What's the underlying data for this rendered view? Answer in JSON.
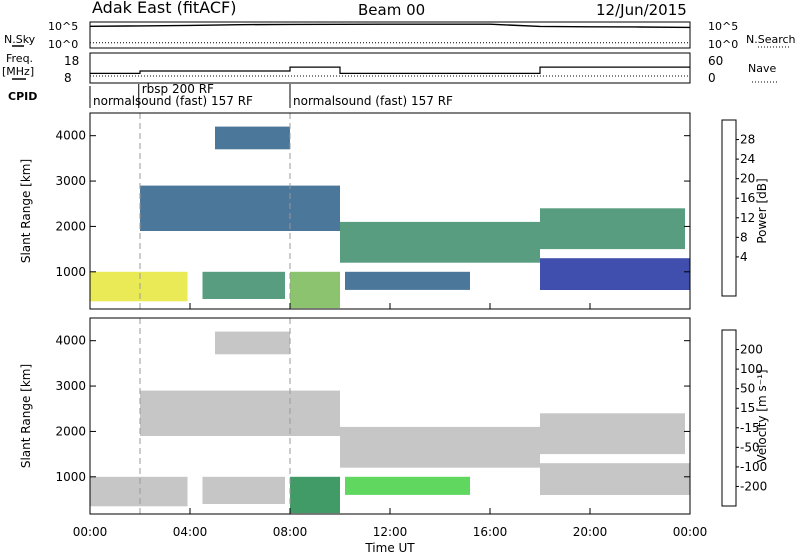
{
  "header": {
    "station": "Adak East (fitACF)",
    "beam": "Beam 00",
    "date": "12/Jun/2015"
  },
  "strip_labels": {
    "nsky": "N.Sky",
    "nsearch": "N.Search",
    "freq": "Freq.",
    "freq_unit": "[MHz]",
    "nave": "Nave",
    "cpid": "CPID"
  },
  "cpid_segments": [
    {
      "label": "normalsound (fast) 157 RF",
      "start": 0.0,
      "end": 1.95
    },
    {
      "label": "rbsp 200 RF",
      "start": 1.95,
      "end": 8.0
    },
    {
      "label": "normalsound (fast) 157 RF",
      "start": 8.0,
      "end": 24.0
    }
  ],
  "colorbars": {
    "power": {
      "label": "Power [dB]",
      "ticks": [
        "28",
        "24",
        "20",
        "16",
        "12",
        "8",
        "4"
      ],
      "colors": [
        "#0000e0",
        "#1e2fa0",
        "#2a5f88",
        "#3b8c6a",
        "#77b955",
        "#e6e63a",
        "#ff9e1a",
        "#ff5a10",
        "#e00000"
      ]
    },
    "velocity": {
      "label": "Velocity [m s⁻¹]",
      "ticks": [
        "200",
        "100",
        "50",
        "15",
        "-15",
        "-50",
        "-100",
        "-200"
      ],
      "colors": [
        "#ee1111",
        "#ff5a00",
        "#ff9a00",
        "#ffd000",
        "#bcbcbc",
        "#44d144",
        "#1f8a4c",
        "#1f3ba0",
        "#1a1a90"
      ]
    }
  },
  "chart_data": [
    {
      "type": "line",
      "title": "",
      "series": [
        {
          "name": "N.Sky",
          "x": [
            0,
            2,
            4,
            6,
            8,
            10,
            12,
            14,
            16,
            18,
            20,
            22,
            24
          ],
          "values": [
            15000,
            18000,
            22000,
            30000,
            35000,
            36000,
            37000,
            38000,
            37000,
            14000,
            12000,
            11000,
            9000
          ]
        },
        {
          "name": "N.Search",
          "x": [
            0,
            24
          ],
          "values": [
            10,
            10
          ]
        }
      ],
      "yticks_left": [
        "10^5",
        "10^0"
      ],
      "yticks_right": [
        "10^5",
        "10^0"
      ]
    },
    {
      "type": "line",
      "title": "",
      "series": [
        {
          "name": "Freq.",
          "x": [
            0,
            2,
            2,
            8,
            8,
            10,
            10,
            18,
            18,
            24
          ],
          "values": [
            11.2,
            11.2,
            12.0,
            12.0,
            13.3,
            13.3,
            11.2,
            11.2,
            13.3,
            13.3
          ]
        },
        {
          "name": "Nave",
          "x": [
            0,
            24
          ],
          "values": [
            14,
            14
          ]
        }
      ],
      "yticks_left": [
        "18",
        "8"
      ],
      "yticks_right": [
        "60",
        "0"
      ]
    },
    {
      "type": "heatmap",
      "title": "",
      "ylabel": "Slant Range [km]",
      "xlim": [
        "00:00",
        "24:00"
      ],
      "ylim": [
        180,
        4500
      ],
      "colorbar_label": "Power [dB]",
      "regions": [
        {
          "t0": 0.0,
          "t1": 3.9,
          "r0": 350,
          "r1": 1000,
          "v": 22
        },
        {
          "t0": 4.5,
          "t1": 7.8,
          "r0": 400,
          "r1": 1000,
          "v": 14
        },
        {
          "t0": 5.0,
          "t1": 8.0,
          "r0": 3700,
          "r1": 4200,
          "v": 10
        },
        {
          "t0": 2.0,
          "t1": 10.0,
          "r0": 1900,
          "r1": 2900,
          "v": 13
        },
        {
          "t0": 8.0,
          "t1": 10.0,
          "r0": 200,
          "r1": 1000,
          "v": 20
        },
        {
          "t0": 10.0,
          "t1": 18.0,
          "r0": 1200,
          "r1": 2100,
          "v": 15
        },
        {
          "t0": 10.2,
          "t1": 15.2,
          "r0": 600,
          "r1": 1000,
          "v": 10
        },
        {
          "t0": 18.0,
          "t1": 23.8,
          "r0": 1500,
          "r1": 2400,
          "v": 16
        },
        {
          "t0": 18.0,
          "t1": 24.0,
          "r0": 600,
          "r1": 1300,
          "v": 8
        }
      ],
      "xticks": [
        "00:00",
        "04:00",
        "08:00",
        "12:00",
        "16:00",
        "20:00",
        "00:00"
      ],
      "yticks": [
        "1000",
        "2000",
        "3000",
        "4000"
      ]
    },
    {
      "type": "heatmap",
      "title": "",
      "xlabel": "Time UT",
      "ylabel": "Slant Range [km]",
      "xlim": [
        "00:00",
        "24:00"
      ],
      "ylim": [
        180,
        4500
      ],
      "colorbar_label": "Velocity [m s⁻¹]",
      "regions": [
        {
          "t0": 0.0,
          "t1": 3.9,
          "r0": 350,
          "r1": 1000,
          "v": 0
        },
        {
          "t0": 4.5,
          "t1": 7.8,
          "r0": 400,
          "r1": 1000,
          "v": 0
        },
        {
          "t0": 5.0,
          "t1": 8.0,
          "r0": 3700,
          "r1": 4200,
          "v": 0
        },
        {
          "t0": 2.0,
          "t1": 10.0,
          "r0": 1900,
          "r1": 2900,
          "v": 0
        },
        {
          "t0": 8.0,
          "t1": 10.0,
          "r0": 200,
          "r1": 1000,
          "v": 60
        },
        {
          "t0": 10.0,
          "t1": 18.0,
          "r0": 1200,
          "r1": 2100,
          "v": 0
        },
        {
          "t0": 10.2,
          "t1": 15.2,
          "r0": 600,
          "r1": 1000,
          "v": 40
        },
        {
          "t0": 18.0,
          "t1": 23.8,
          "r0": 1500,
          "r1": 2400,
          "v": 0
        },
        {
          "t0": 18.0,
          "t1": 24.0,
          "r0": 600,
          "r1": 1300,
          "v": 0
        }
      ],
      "xticks": [
        "00:00",
        "04:00",
        "08:00",
        "12:00",
        "16:00",
        "20:00",
        "00:00"
      ],
      "yticks": [
        "1000",
        "2000",
        "3000",
        "4000"
      ]
    }
  ]
}
